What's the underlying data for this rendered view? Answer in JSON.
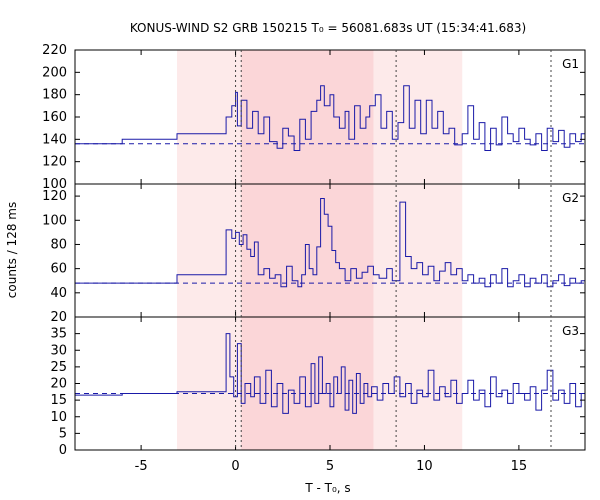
{
  "chart_data": {
    "type": "line",
    "title": "KONUS-WIND S2 GRB 150215 T₀ = 56081.683s UT (15:34:41.683)",
    "xlabel": "T - T₀, s",
    "ylabel": "counts / 128 ms",
    "xlim": [
      -8.5,
      18.5
    ],
    "x_ticks": [
      -5,
      0,
      5,
      10,
      15
    ],
    "shaded_regions": [
      {
        "x0": -3.1,
        "x1": 12.0,
        "color": "#fdeaea"
      },
      {
        "x0": 0.3,
        "x1": 7.3,
        "color": "#fbd6d8"
      }
    ],
    "vlines": [
      0.0,
      0.3,
      8.5,
      16.7
    ],
    "line_color": "#1a1aa8",
    "panels": [
      {
        "name": "G1",
        "ylim": [
          100,
          220
        ],
        "y_ticks": [
          100,
          120,
          140,
          160,
          180,
          200,
          220
        ],
        "background": 136,
        "steps": [
          [
            -8.5,
            136
          ],
          [
            -6.0,
            140
          ],
          [
            -3.1,
            145
          ],
          [
            -0.5,
            160
          ],
          [
            -0.2,
            170
          ],
          [
            0.0,
            182
          ],
          [
            0.1,
            152
          ],
          [
            0.3,
            175
          ],
          [
            0.6,
            150
          ],
          [
            0.9,
            165
          ],
          [
            1.2,
            145
          ],
          [
            1.5,
            160
          ],
          [
            1.8,
            138
          ],
          [
            2.2,
            132
          ],
          [
            2.5,
            150
          ],
          [
            2.8,
            143
          ],
          [
            3.1,
            130
          ],
          [
            3.4,
            158
          ],
          [
            3.7,
            140
          ],
          [
            4.0,
            165
          ],
          [
            4.3,
            175
          ],
          [
            4.5,
            188
          ],
          [
            4.7,
            170
          ],
          [
            5.0,
            180
          ],
          [
            5.2,
            160
          ],
          [
            5.5,
            150
          ],
          [
            5.8,
            165
          ],
          [
            6.0,
            140
          ],
          [
            6.3,
            170
          ],
          [
            6.6,
            150
          ],
          [
            6.9,
            160
          ],
          [
            7.1,
            170
          ],
          [
            7.4,
            180
          ],
          [
            7.7,
            150
          ],
          [
            8.0,
            165
          ],
          [
            8.3,
            140
          ],
          [
            8.6,
            155
          ],
          [
            8.9,
            188
          ],
          [
            9.2,
            150
          ],
          [
            9.5,
            175
          ],
          [
            9.8,
            145
          ],
          [
            10.1,
            175
          ],
          [
            10.4,
            150
          ],
          [
            10.7,
            165
          ],
          [
            11.0,
            145
          ],
          [
            11.3,
            150
          ],
          [
            11.6,
            135
          ],
          [
            12.0,
            145
          ],
          [
            12.3,
            170
          ],
          [
            12.6,
            140
          ],
          [
            12.9,
            155
          ],
          [
            13.2,
            130
          ],
          [
            13.5,
            150
          ],
          [
            13.8,
            135
          ],
          [
            14.1,
            160
          ],
          [
            14.4,
            145
          ],
          [
            14.7,
            138
          ],
          [
            15.0,
            150
          ],
          [
            15.3,
            140
          ],
          [
            15.6,
            135
          ],
          [
            15.9,
            145
          ],
          [
            16.2,
            130
          ],
          [
            16.5,
            150
          ],
          [
            16.8,
            138
          ],
          [
            17.1,
            148
          ],
          [
            17.4,
            133
          ],
          [
            17.7,
            145
          ],
          [
            18.0,
            138
          ],
          [
            18.3,
            145
          ]
        ]
      },
      {
        "name": "G2",
        "ylim": [
          20,
          130
        ],
        "y_ticks": [
          20,
          40,
          60,
          80,
          100,
          120
        ],
        "background": 48,
        "steps": [
          [
            -8.5,
            48
          ],
          [
            -6.0,
            48
          ],
          [
            -3.1,
            55
          ],
          [
            -0.5,
            92
          ],
          [
            -0.2,
            85
          ],
          [
            0.0,
            90
          ],
          [
            0.2,
            80
          ],
          [
            0.4,
            88
          ],
          [
            0.6,
            76
          ],
          [
            0.8,
            70
          ],
          [
            1.0,
            82
          ],
          [
            1.2,
            55
          ],
          [
            1.5,
            60
          ],
          [
            1.8,
            52
          ],
          [
            2.1,
            55
          ],
          [
            2.4,
            45
          ],
          [
            2.7,
            62
          ],
          [
            3.0,
            50
          ],
          [
            3.3,
            45
          ],
          [
            3.5,
            55
          ],
          [
            3.7,
            80
          ],
          [
            3.9,
            60
          ],
          [
            4.1,
            55
          ],
          [
            4.3,
            78
          ],
          [
            4.5,
            118
          ],
          [
            4.7,
            105
          ],
          [
            4.9,
            95
          ],
          [
            5.1,
            75
          ],
          [
            5.3,
            65
          ],
          [
            5.5,
            60
          ],
          [
            5.8,
            50
          ],
          [
            6.1,
            60
          ],
          [
            6.4,
            52
          ],
          [
            6.7,
            57
          ],
          [
            7.0,
            62
          ],
          [
            7.3,
            55
          ],
          [
            7.6,
            52
          ],
          [
            8.0,
            60
          ],
          [
            8.3,
            50
          ],
          [
            8.7,
            115
          ],
          [
            9.0,
            70
          ],
          [
            9.3,
            60
          ],
          [
            9.6,
            65
          ],
          [
            9.9,
            55
          ],
          [
            10.2,
            62
          ],
          [
            10.5,
            50
          ],
          [
            10.8,
            58
          ],
          [
            11.1,
            65
          ],
          [
            11.4,
            55
          ],
          [
            11.7,
            60
          ],
          [
            12.0,
            50
          ],
          [
            12.3,
            55
          ],
          [
            12.6,
            48
          ],
          [
            12.9,
            52
          ],
          [
            13.2,
            45
          ],
          [
            13.5,
            55
          ],
          [
            13.8,
            48
          ],
          [
            14.1,
            60
          ],
          [
            14.4,
            45
          ],
          [
            14.7,
            50
          ],
          [
            15.0,
            55
          ],
          [
            15.3,
            45
          ],
          [
            15.6,
            52
          ],
          [
            15.9,
            48
          ],
          [
            16.2,
            55
          ],
          [
            16.5,
            45
          ],
          [
            16.8,
            50
          ],
          [
            17.1,
            55
          ],
          [
            17.4,
            46
          ],
          [
            17.7,
            52
          ],
          [
            18.0,
            48
          ],
          [
            18.3,
            50
          ]
        ]
      },
      {
        "name": "G3",
        "ylim": [
          0,
          40
        ],
        "y_ticks": [
          0,
          5,
          10,
          15,
          20,
          25,
          30,
          35
        ],
        "background": 17,
        "steps": [
          [
            -8.5,
            16.5
          ],
          [
            -6.0,
            17
          ],
          [
            -3.1,
            17.5
          ],
          [
            -0.5,
            35
          ],
          [
            -0.3,
            22
          ],
          [
            -0.1,
            16
          ],
          [
            0.1,
            32
          ],
          [
            0.3,
            14
          ],
          [
            0.5,
            20
          ],
          [
            0.8,
            16
          ],
          [
            1.0,
            22
          ],
          [
            1.3,
            14
          ],
          [
            1.6,
            24
          ],
          [
            1.9,
            13
          ],
          [
            2.2,
            20
          ],
          [
            2.5,
            11
          ],
          [
            2.8,
            18
          ],
          [
            3.1,
            14
          ],
          [
            3.4,
            22
          ],
          [
            3.7,
            13
          ],
          [
            4.0,
            26
          ],
          [
            4.2,
            14
          ],
          [
            4.4,
            28
          ],
          [
            4.6,
            17
          ],
          [
            4.8,
            20
          ],
          [
            5.0,
            13
          ],
          [
            5.2,
            22
          ],
          [
            5.4,
            17
          ],
          [
            5.6,
            25
          ],
          [
            5.8,
            12
          ],
          [
            6.0,
            21
          ],
          [
            6.2,
            11
          ],
          [
            6.4,
            23
          ],
          [
            6.6,
            14
          ],
          [
            6.8,
            20
          ],
          [
            7.0,
            16
          ],
          [
            7.2,
            19
          ],
          [
            7.5,
            15
          ],
          [
            7.8,
            20
          ],
          [
            8.1,
            17
          ],
          [
            8.4,
            22
          ],
          [
            8.7,
            16
          ],
          [
            9.0,
            20
          ],
          [
            9.3,
            14
          ],
          [
            9.6,
            18
          ],
          [
            9.9,
            16
          ],
          [
            10.2,
            24
          ],
          [
            10.5,
            15
          ],
          [
            10.8,
            19
          ],
          [
            11.1,
            16
          ],
          [
            11.4,
            21
          ],
          [
            11.7,
            14
          ],
          [
            12.0,
            17
          ],
          [
            12.3,
            21
          ],
          [
            12.6,
            15
          ],
          [
            12.9,
            18
          ],
          [
            13.2,
            13
          ],
          [
            13.5,
            22
          ],
          [
            13.8,
            16
          ],
          [
            14.1,
            18
          ],
          [
            14.4,
            14
          ],
          [
            14.7,
            20
          ],
          [
            15.0,
            17
          ],
          [
            15.3,
            15
          ],
          [
            15.6,
            19
          ],
          [
            15.9,
            12
          ],
          [
            16.2,
            18
          ],
          [
            16.5,
            24
          ],
          [
            16.8,
            15
          ],
          [
            17.1,
            18
          ],
          [
            17.4,
            14
          ],
          [
            17.7,
            20
          ],
          [
            18.0,
            13
          ],
          [
            18.3,
            17
          ]
        ]
      }
    ]
  }
}
